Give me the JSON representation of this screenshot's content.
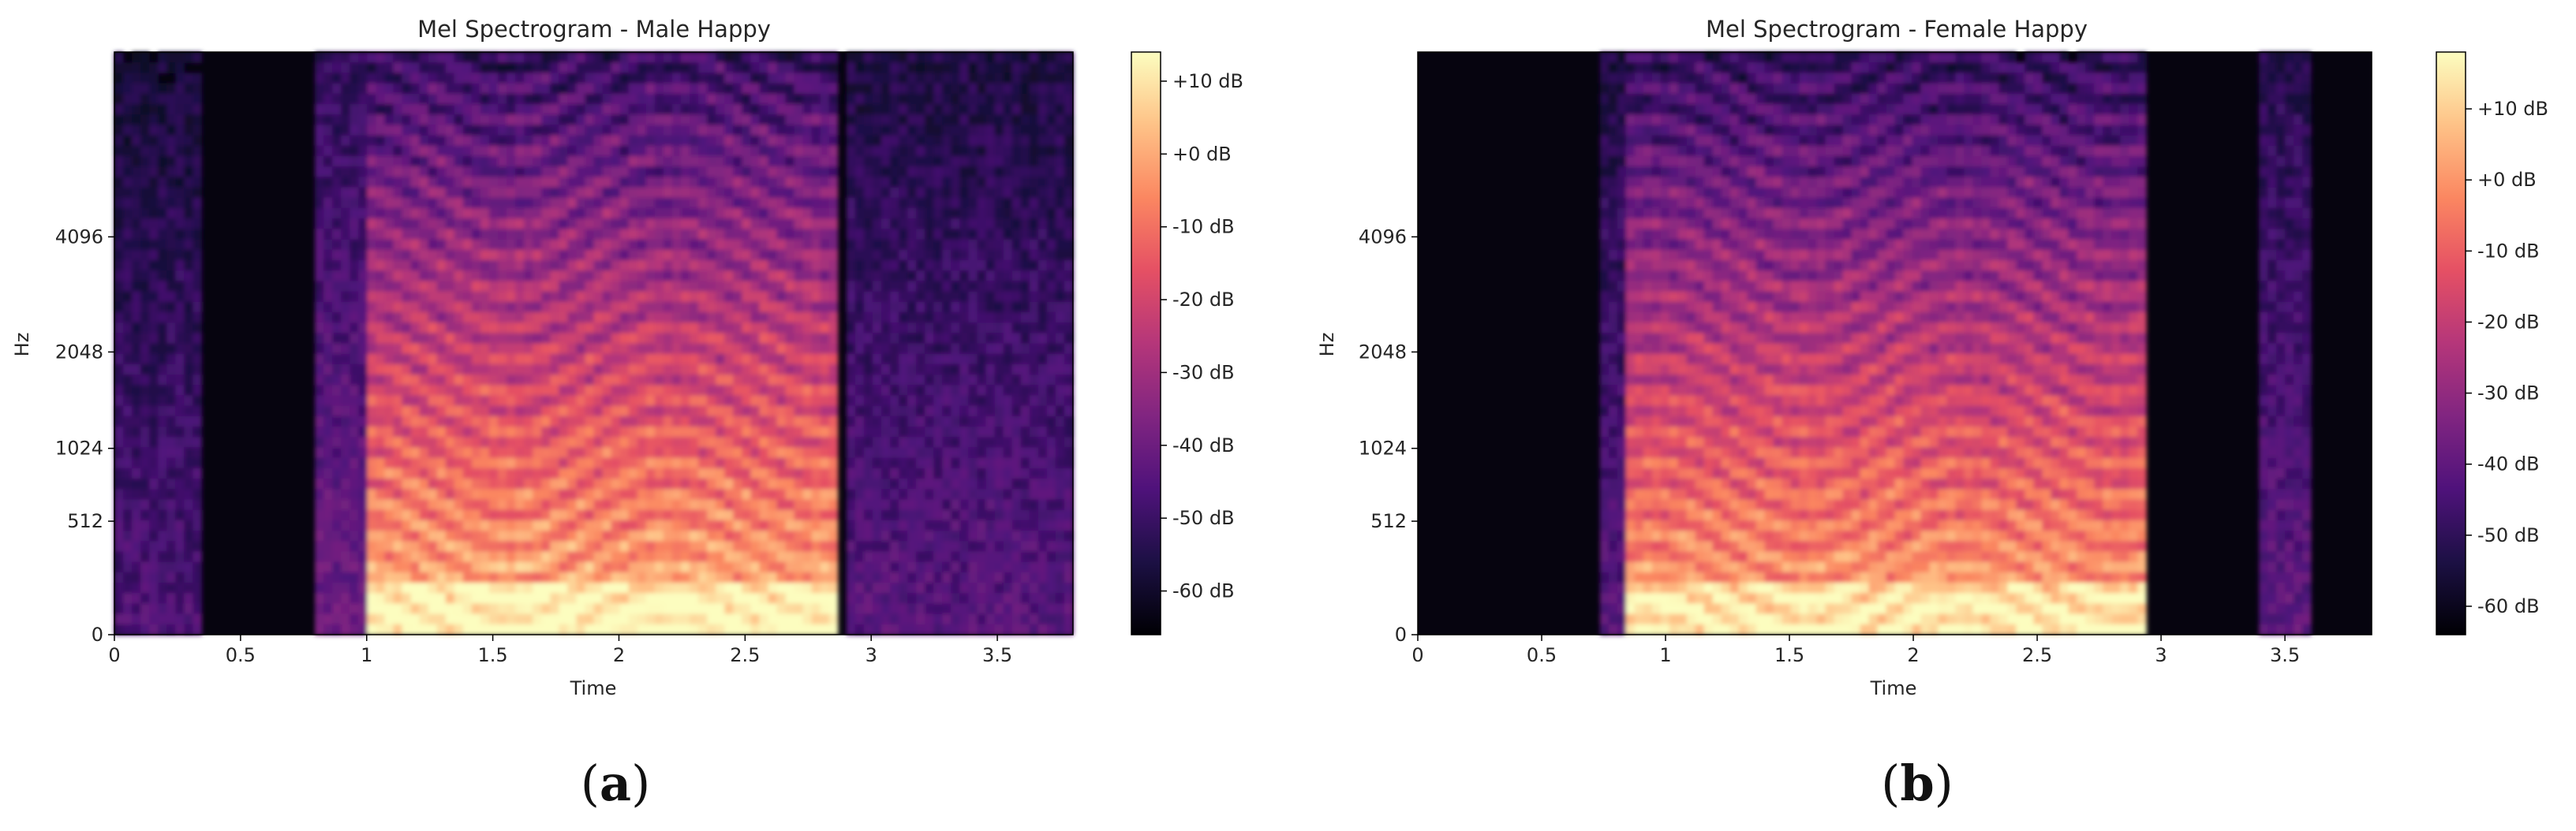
{
  "chart_data": [
    {
      "type": "heatmap",
      "title": "Mel Spectrogram - Male Happy",
      "xlabel": "Time",
      "ylabel": "Hz",
      "xlim": [
        0,
        3.8
      ],
      "x_ticks": [
        0,
        0.5,
        1,
        1.5,
        2,
        2.5,
        3,
        3.5
      ],
      "x_tick_labels": [
        "0",
        "0.5",
        "1",
        "1.5",
        "2",
        "2.5",
        "3",
        "3.5"
      ],
      "y_scale": "mel",
      "y_ticks": [
        0,
        512,
        1024,
        2048,
        4096
      ],
      "y_tick_labels": [
        "0",
        "512",
        "1024",
        "2048",
        "4096"
      ],
      "colormap": "magma",
      "colorbar": {
        "range_db": [
          -66,
          14
        ],
        "ticks": [
          10,
          0,
          -10,
          -20,
          -30,
          -40,
          -50,
          -60
        ],
        "tick_labels": [
          "+10 dB",
          "+0 dB",
          "-10 dB",
          "-20 dB",
          "-30 dB",
          "-40 dB",
          "-50 dB",
          "-60 dB"
        ]
      },
      "energy_segments": [
        {
          "start": 0.0,
          "end": 0.35,
          "level_db": -46
        },
        {
          "start": 0.8,
          "end": 1.0,
          "level_db": -40
        },
        {
          "start": 1.0,
          "end": 2.85,
          "level_db": 5
        },
        {
          "start": 2.9,
          "end": 3.8,
          "level_db": -44
        }
      ],
      "panel_label": "a"
    },
    {
      "type": "heatmap",
      "title": "Mel Spectrogram - Female Happy",
      "xlabel": "Time",
      "ylabel": "Hz",
      "xlim": [
        0,
        3.85
      ],
      "x_ticks": [
        0,
        0.5,
        1,
        1.5,
        2,
        2.5,
        3,
        3.5
      ],
      "x_tick_labels": [
        "0",
        "0.5",
        "1",
        "1.5",
        "2",
        "2.5",
        "3",
        "3.5"
      ],
      "y_scale": "mel",
      "y_ticks": [
        0,
        512,
        1024,
        2048,
        4096
      ],
      "y_tick_labels": [
        "0",
        "512",
        "1024",
        "2048",
        "4096"
      ],
      "colormap": "magma",
      "colorbar": {
        "range_db": [
          -64,
          18
        ],
        "ticks": [
          10,
          0,
          -10,
          -20,
          -30,
          -40,
          -50,
          -60
        ],
        "tick_labels": [
          "+10 dB",
          "+0 dB",
          "-10 dB",
          "-20 dB",
          "-30 dB",
          "-40 dB",
          "-50 dB",
          "-60 dB"
        ]
      },
      "energy_segments": [
        {
          "start": 0.75,
          "end": 0.85,
          "level_db": -42
        },
        {
          "start": 0.85,
          "end": 2.95,
          "level_db": 6
        },
        {
          "start": 3.4,
          "end": 3.6,
          "level_db": -40
        }
      ],
      "panel_label": "b"
    }
  ],
  "colors": {
    "magma": [
      "#000004",
      "#1c1044",
      "#4f127b",
      "#812581",
      "#b5367a",
      "#e55064",
      "#fb8761",
      "#fec287",
      "#fcfdbf"
    ],
    "text": "#262626",
    "background": "#ffffff"
  }
}
